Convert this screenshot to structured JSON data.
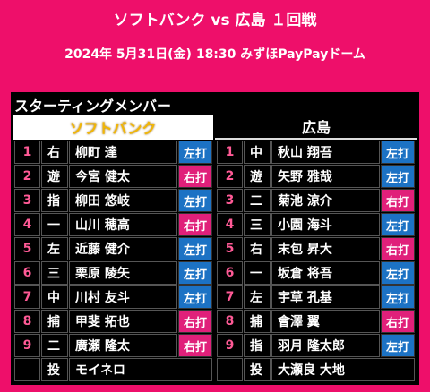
{
  "header": {
    "title": "ソフトバンク vs 広島 １回戦",
    "subtitle": "2024年 5月31日(金) 18:30 みずほPayPayドーム"
  },
  "section_title": "スターティングメンバー",
  "teams": [
    {
      "name": "ソフトバンク",
      "rows": [
        {
          "num": 1,
          "pos": "右",
          "name": "柳町 達",
          "bat": "左打",
          "bat_color": "#1c72c4"
        },
        {
          "num": 2,
          "pos": "遊",
          "name": "今宮 健太",
          "bat": "右打",
          "bat_color": "#e0207a"
        },
        {
          "num": 3,
          "pos": "指",
          "name": "柳田 悠岐",
          "bat": "左打",
          "bat_color": "#1c72c4"
        },
        {
          "num": 4,
          "pos": "一",
          "name": "山川 穂高",
          "bat": "右打",
          "bat_color": "#e0207a"
        },
        {
          "num": 5,
          "pos": "左",
          "name": "近藤 健介",
          "bat": "左打",
          "bat_color": "#1c72c4"
        },
        {
          "num": 6,
          "pos": "三",
          "name": "栗原 陵矢",
          "bat": "左打",
          "bat_color": "#1c72c4"
        },
        {
          "num": 7,
          "pos": "中",
          "name": "川村 友斗",
          "bat": "左打",
          "bat_color": "#1c72c4"
        },
        {
          "num": 8,
          "pos": "捕",
          "name": "甲斐 拓也",
          "bat": "右打",
          "bat_color": "#e0207a"
        },
        {
          "num": 9,
          "pos": "二",
          "name": "廣瀬 隆太",
          "bat": "右打",
          "bat_color": "#e0207a"
        }
      ],
      "pitcher": {
        "pos": "投",
        "name": "モイネロ"
      }
    },
    {
      "name": "広島",
      "rows": [
        {
          "num": 1,
          "pos": "中",
          "name": "秋山 翔吾",
          "bat": "左打",
          "bat_color": "#1c72c4"
        },
        {
          "num": 2,
          "pos": "遊",
          "name": "矢野 雅哉",
          "bat": "左打",
          "bat_color": "#1c72c4"
        },
        {
          "num": 3,
          "pos": "二",
          "name": "菊池 涼介",
          "bat": "右打",
          "bat_color": "#e0207a"
        },
        {
          "num": 4,
          "pos": "三",
          "name": "小園 海斗",
          "bat": "左打",
          "bat_color": "#1c72c4"
        },
        {
          "num": 5,
          "pos": "右",
          "name": "末包 昇大",
          "bat": "右打",
          "bat_color": "#e0207a"
        },
        {
          "num": 6,
          "pos": "一",
          "name": "坂倉 将吾",
          "bat": "左打",
          "bat_color": "#1c72c4"
        },
        {
          "num": 7,
          "pos": "左",
          "name": "宇草 孔基",
          "bat": "左打",
          "bat_color": "#1c72c4"
        },
        {
          "num": 8,
          "pos": "捕",
          "name": "會澤 翼",
          "bat": "右打",
          "bat_color": "#e0207a"
        },
        {
          "num": 9,
          "pos": "指",
          "name": "羽月 隆太郎",
          "bat": "左打",
          "bat_color": "#1c72c4"
        }
      ],
      "pitcher": {
        "pos": "投",
        "name": "大瀬良 大地"
      }
    }
  ]
}
